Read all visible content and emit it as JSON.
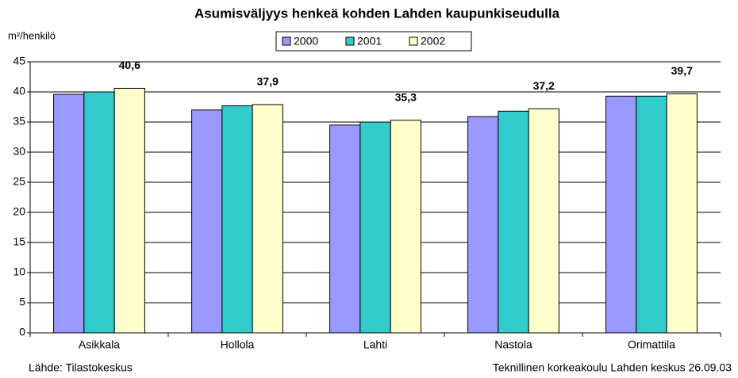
{
  "chart_data": {
    "type": "bar",
    "title": "Asumisväljyys henkeä kohden Lahden kaupunkiseudulla",
    "y_label": "m²/henkilö",
    "categories": [
      "Asikkala",
      "Hollola",
      "Lahti",
      "Nastola",
      "Orimattila"
    ],
    "series": [
      {
        "name": "2000",
        "color": "#9999ff",
        "values": [
          39.6,
          37.0,
          34.5,
          35.9,
          39.3
        ]
      },
      {
        "name": "2001",
        "color": "#33cccc",
        "values": [
          40.0,
          37.7,
          35.0,
          36.8,
          39.3
        ]
      },
      {
        "name": "2002",
        "color": "#ffffcc",
        "values": [
          40.6,
          37.9,
          35.3,
          37.2,
          39.7
        ],
        "value_labels": [
          "40,6",
          "37,9",
          "35,3",
          "37,2",
          "39,7"
        ]
      }
    ],
    "ylim": [
      0,
      45
    ],
    "yticks": [
      0,
      5,
      10,
      15,
      20,
      25,
      30,
      35,
      40,
      45
    ],
    "grid": true,
    "legend": "top",
    "annotations": [
      "Lähde: Tilastokeskus",
      "Teknillinen korkeakoulu Lahden keskus 26.09.03"
    ]
  }
}
